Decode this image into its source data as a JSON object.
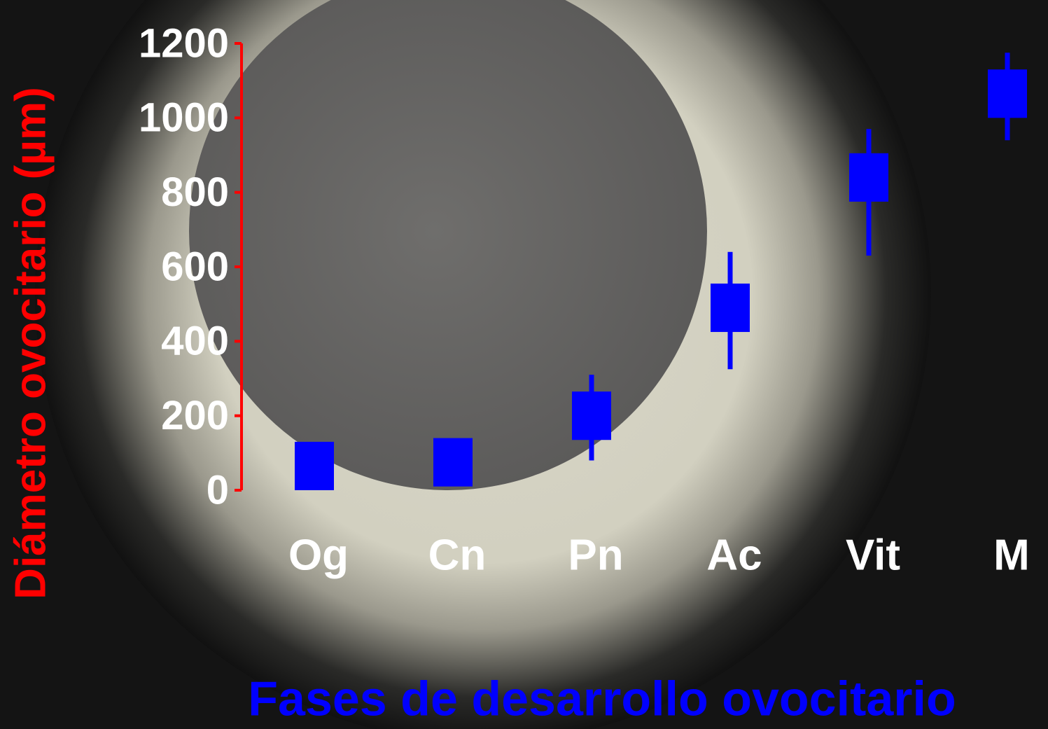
{
  "chart_data": {
    "type": "box",
    "title_y": "Diámetro ovocitario (µm)",
    "title_x": "Fases de desarrollo ovocitario",
    "categories": [
      "Og",
      "Cn",
      "Pn",
      "Ac",
      "Vit",
      "M"
    ],
    "box_low": [
      0,
      10,
      135,
      425,
      775,
      1000
    ],
    "box_high": [
      130,
      140,
      265,
      555,
      905,
      1130
    ],
    "whisker_low": [
      null,
      null,
      80,
      325,
      630,
      940
    ],
    "whisker_high": [
      null,
      null,
      310,
      640,
      970,
      1175
    ],
    "color": "#0000ff",
    "axis_color": "#ff0000",
    "ylim": [
      0,
      1200
    ],
    "yticks": [
      0,
      200,
      400,
      600,
      800,
      1000,
      1200
    ]
  }
}
